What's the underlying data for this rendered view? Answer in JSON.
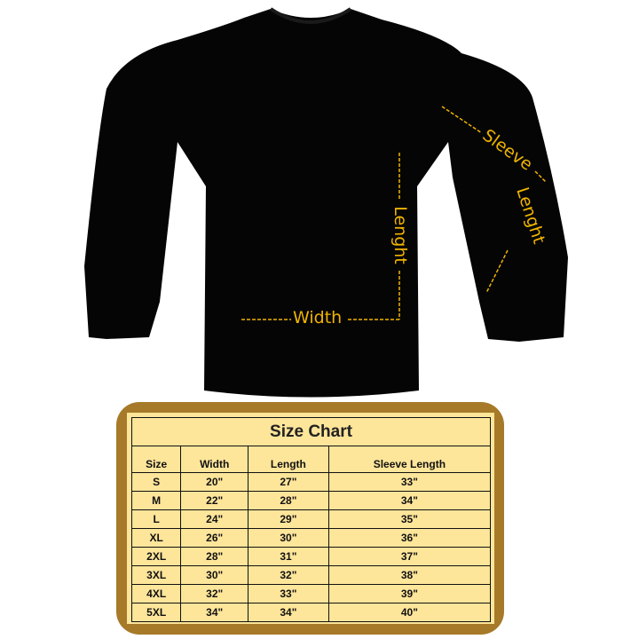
{
  "annotations": {
    "width": "Width",
    "length": "Lenght",
    "sleeve": "Sleeve",
    "sleeve_length": "Lenght"
  },
  "colors": {
    "garment": "#000000",
    "annotation": "#f0b400",
    "frame": "#a67a29",
    "table_bg": "#fde59a"
  },
  "size_chart": {
    "title": "Size Chart",
    "headers": [
      "Size",
      "Width",
      "Length",
      "Sleeve Length"
    ],
    "rows": [
      [
        "S",
        "20\"",
        "27\"",
        "33\""
      ],
      [
        "M",
        "22\"",
        "28\"",
        "34\""
      ],
      [
        "L",
        "24\"",
        "29\"",
        "35\""
      ],
      [
        "XL",
        "26\"",
        "30\"",
        "36\""
      ],
      [
        "2XL",
        "28\"",
        "31\"",
        "37\""
      ],
      [
        "3XL",
        "30\"",
        "32\"",
        "38\""
      ],
      [
        "4XL",
        "32\"",
        "33\"",
        "39\""
      ],
      [
        "5XL",
        "34\"",
        "34\"",
        "40\""
      ]
    ]
  }
}
